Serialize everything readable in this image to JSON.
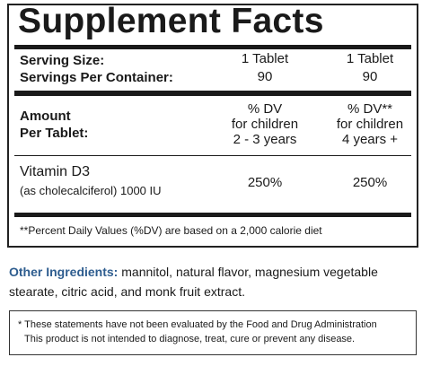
{
  "panel": {
    "title": "Supplement Facts",
    "serving_size_label": "Serving Size:",
    "servings_per_container_label": "Servings Per Container:",
    "col1_serving": "1 Tablet",
    "col2_serving": "1 Tablet",
    "col1_servings": "90",
    "col2_servings": "90",
    "amount_label_line1": "Amount",
    "amount_label_line2": "Per Tablet:",
    "col1_header": [
      "% DV",
      "for children",
      "2 - 3 years"
    ],
    "col2_header": [
      "% DV**",
      "for children",
      "4 years +"
    ],
    "nutrient": {
      "name": "Vitamin D3",
      "detail": "(as cholecalciferol) 1000 IU",
      "col1_dv": "250%",
      "col2_dv": "250%"
    },
    "footnote": "**Percent Daily Values (%DV) are based on a 2,000 calorie diet"
  },
  "other_ingredients": {
    "label": "Other Ingredients:",
    "text": " mannitol, natural flavor, magnesium vegetable stearate, citric acid, and monk fruit extract."
  },
  "disclaimer": {
    "line1": "* These statements have not been evaluated by the Food and Drug Administration",
    "line2": "This product is not intended to diagnose, treat, cure or prevent any disease."
  },
  "colors": {
    "accent": "#2e5d8f",
    "text": "#1a1a1a"
  }
}
